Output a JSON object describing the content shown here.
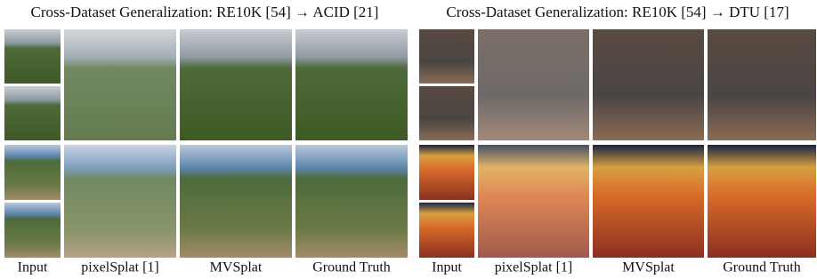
{
  "panels": [
    {
      "title": "Cross-Dataset Generalization: RE10K [54] → ACID [21]",
      "columns": [
        "Input",
        "pixelSplat [1]",
        "MVSplat",
        "Ground Truth"
      ]
    },
    {
      "title": "Cross-Dataset Generalization: RE10K [54] → DTU [17]",
      "columns": [
        "Input",
        "pixelSplat [1]",
        "MVSplat",
        "Ground Truth"
      ]
    }
  ]
}
